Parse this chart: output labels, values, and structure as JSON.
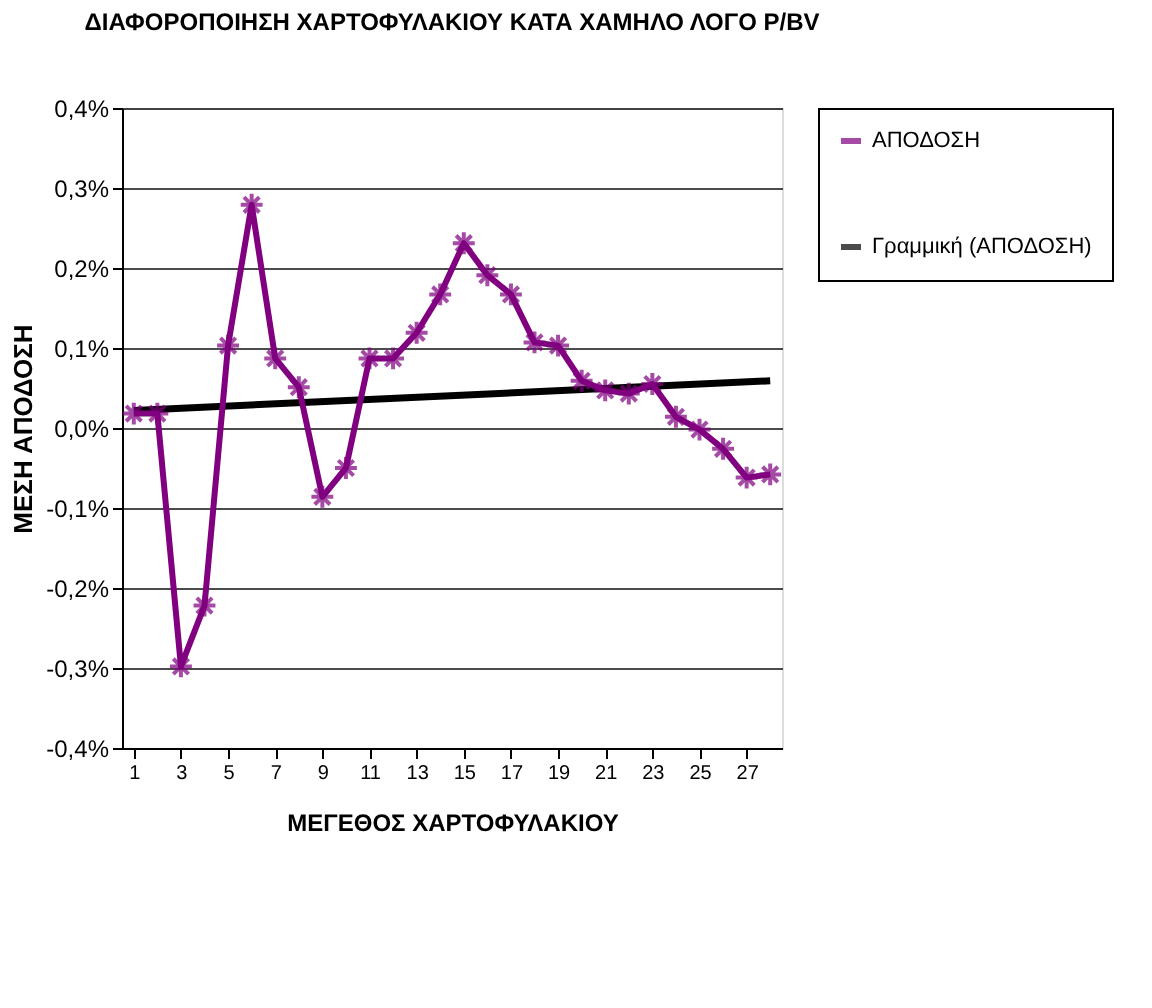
{
  "chart_data": {
    "type": "line",
    "title": "ΔΙΑΦΟΡΟΠΟΙΗΣΗ ΧΑΡΤΟΦΥΛΑΚΙΟΥ ΚΑΤΑ ΧΑΜΗΛΟ ΛΟΓΟ P/BV",
    "xlabel": "ΜΕΓΕΘΟΣ ΧΑΡΤΟΦΥΛΑΚΙΟΥ",
    "ylabel": "ΜΕΣΗ ΑΠΟΔΟΣΗ",
    "x": [
      1,
      2,
      3,
      4,
      5,
      6,
      7,
      8,
      9,
      10,
      11,
      12,
      13,
      14,
      15,
      16,
      17,
      18,
      19,
      20,
      21,
      22,
      23,
      24,
      25,
      26,
      27,
      28
    ],
    "series": [
      {
        "name": "ΑΠΟΔΟΣΗ",
        "color": "#800080",
        "marker": "cross",
        "values": [
          0.018,
          0.018,
          -0.298,
          -0.222,
          0.103,
          0.279,
          0.087,
          0.051,
          -0.086,
          -0.05,
          0.087,
          0.087,
          0.119,
          0.167,
          0.231,
          0.191,
          0.167,
          0.107,
          0.103,
          0.059,
          0.047,
          0.043,
          0.055,
          0.014,
          -0.002,
          -0.026,
          -0.062,
          -0.058
        ]
      },
      {
        "name": "Γραμμική (ΑΠΟΔΟΣΗ)",
        "color": "#000000",
        "marker": "none",
        "x": [
          1,
          28
        ],
        "values": [
          0.022,
          0.059
        ]
      }
    ],
    "xlim": [
      0.5,
      28.5
    ],
    "xticks": [
      1,
      3,
      5,
      7,
      9,
      11,
      13,
      15,
      17,
      19,
      21,
      23,
      25,
      27
    ],
    "ylim": [
      -0.4,
      0.4
    ],
    "yticks": [
      {
        "value": -0.4,
        "label": "-0,4%"
      },
      {
        "value": -0.3,
        "label": "-0,3%"
      },
      {
        "value": -0.2,
        "label": "-0,2%"
      },
      {
        "value": -0.1,
        "label": "-0,1%"
      },
      {
        "value": 0,
        "label": "0,0%"
      },
      {
        "value": 0.1,
        "label": "0,1%"
      },
      {
        "value": 0.2,
        "label": "0,2%"
      },
      {
        "value": 0.3,
        "label": "0,3%"
      },
      {
        "value": 0.4,
        "label": "0,4%"
      }
    ],
    "grid": "y",
    "legend": "right",
    "line_style": "solid"
  }
}
